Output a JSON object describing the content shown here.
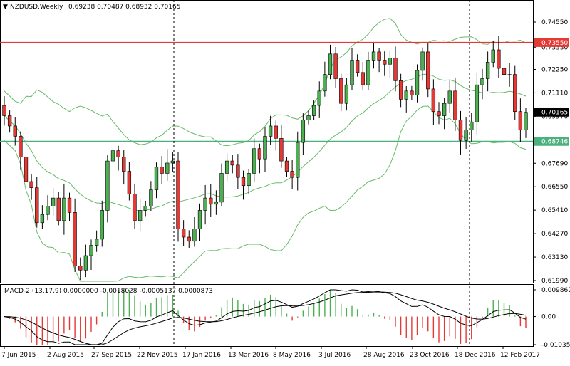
{
  "header": {
    "symbol": "NZDUSD,Weekly",
    "ohlc": "0.69238 0.70487 0.68932 0.70165"
  },
  "macd": {
    "label": "MACD-2 (13,17,9) 0.0000000 -0.0018028 -0.0005137 0.0000873",
    "axis_labels": [
      "0.009867",
      "0.00",
      "-0.010357"
    ],
    "axis_values": [
      0.009867,
      0.0,
      -0.010357
    ]
  },
  "levels": [
    {
      "value": 0.7355,
      "label": "0.73550",
      "color": "#e53935"
    },
    {
      "value": 0.68746,
      "label": "0.68746",
      "color": "#4caf7e"
    }
  ],
  "current_price": {
    "value": 0.70165,
    "label": "0.70165"
  },
  "colors": {
    "bull": "#4caf50",
    "bear": "#e53935",
    "band": "#66bb6a",
    "grid": "#000000",
    "price_tag_bg": "#000000",
    "resistance": "#e53935",
    "support": "#4caf7e"
  },
  "chart_data": {
    "type": "candlestick",
    "y_axis_ticks": [
      "0.74550",
      "0.73330",
      "0.72250",
      "0.71110",
      "0.69970",
      "0.68820",
      "0.67690",
      "0.66550",
      "0.65410",
      "0.64270",
      "0.63130",
      "0.61990"
    ],
    "y_axis_values": [
      0.7455,
      0.7333,
      0.7225,
      0.7111,
      0.6997,
      0.6882,
      0.6769,
      0.6655,
      0.6541,
      0.6427,
      0.6313,
      0.6199
    ],
    "ylim": [
      0.6199,
      0.7455
    ],
    "x_labels": [
      "7 Jun 2015",
      "2 Aug 2015",
      "27 Sep 2015",
      "22 Nov 2015",
      "17 Jan 2016",
      "13 Mar 2016",
      "8 May 2016",
      "3 Jul 2016",
      "28 Aug 2016",
      "23 Oct 2016",
      "18 Dec 2016",
      "12 Feb 2017"
    ],
    "close": [
      0.7,
      0.695,
      0.69,
      0.68,
      0.668,
      0.665,
      0.648,
      0.652,
      0.656,
      0.66,
      0.649,
      0.66,
      0.653,
      0.627,
      0.625,
      0.632,
      0.637,
      0.64,
      0.654,
      0.678,
      0.683,
      0.68,
      0.673,
      0.662,
      0.649,
      0.654,
      0.656,
      0.664,
      0.675,
      0.672,
      0.677,
      0.678,
      0.645,
      0.641,
      0.639,
      0.645,
      0.654,
      0.66,
      0.657,
      0.658,
      0.672,
      0.678,
      0.676,
      0.67,
      0.666,
      0.672,
      0.684,
      0.679,
      0.69,
      0.695,
      0.689,
      0.678,
      0.673,
      0.67,
      0.687,
      0.698,
      0.7,
      0.705,
      0.712,
      0.72,
      0.73,
      0.718,
      0.706,
      0.715,
      0.727,
      0.721,
      0.715,
      0.727,
      0.731,
      0.727,
      0.725,
      0.728,
      0.717,
      0.708,
      0.712,
      0.71,
      0.722,
      0.731,
      0.713,
      0.702,
      0.7,
      0.706,
      0.712,
      0.698,
      0.688,
      0.693,
      0.697,
      0.715,
      0.718,
      0.726,
      0.732,
      0.723,
      0.72,
      0.72,
      0.702,
      0.693,
      0.70165
    ],
    "ohlc": {
      "open": 0.69238,
      "high": 0.70487,
      "low": 0.68932,
      "close": 0.70165
    },
    "indicators": [
      {
        "name": "MACD-2 (13,17,9)",
        "values": [
          0.0,
          -0.0018028,
          -0.0005137,
          8.73e-05
        ]
      }
    ],
    "horizontal_lines": [
      0.7355,
      0.68746
    ],
    "grid": false
  }
}
